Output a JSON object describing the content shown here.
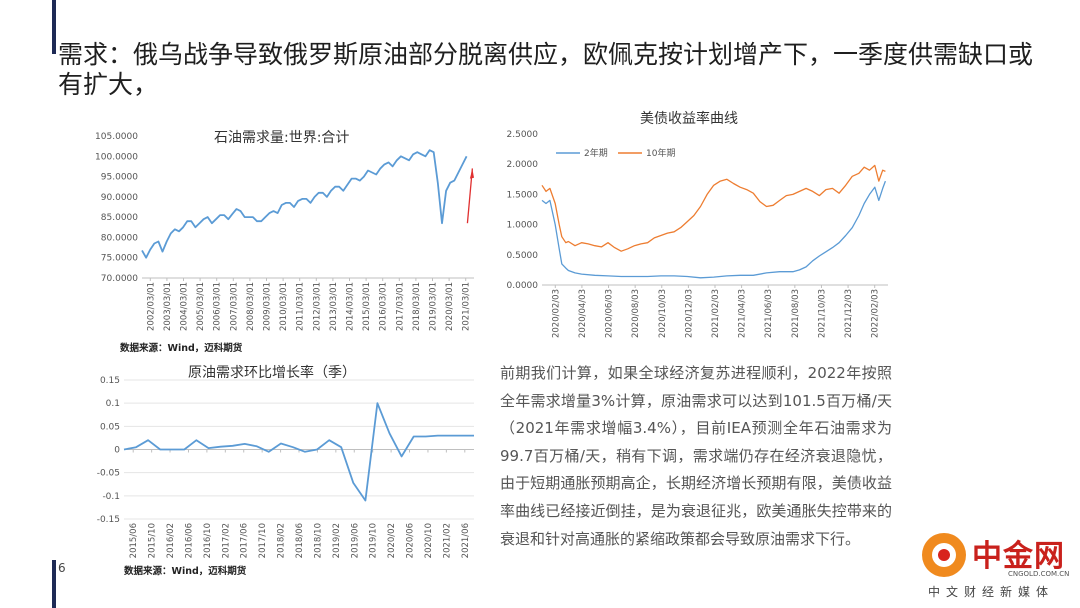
{
  "slide": {
    "title": "需求：俄乌战争导致俄罗斯原油部分脱离供应，欧佩克按计划增产下，一季度供需缺口或有扩大，",
    "page_number": "6",
    "paragraph": "前期我们计算，如果全球经济复苏进程顺利，2022年按照全年需求增量3%计算，原油需求可以达到101.5百万桶/天（2021年需求增幅3.4%），目前IEA预测全年石油需求为99.7百万桶/天，稍有下调，需求端仍存在经济衰退隐忧，由于短期通胀预期高企，长期经济增长预期有限，美债收益率曲线已经接近倒挂，是为衰退征兆，欧美通胀失控带来的衰退和针对高通胀的紧缩政策都会导致原油需求下行。"
  },
  "logo": {
    "text": "中金网",
    "url": "CNGOLD.COM.CN",
    "sub": "中文财经新媒体"
  },
  "colors": {
    "blue": "#5b9bd5",
    "orange": "#ed7d31",
    "arrow": "#e03030",
    "title_bar": "#1e2a55"
  },
  "chart_data": [
    {
      "id": "oil-demand",
      "type": "line",
      "title": "石油需求量:世界:合计",
      "source": "数据来源：Wind，迈科期货",
      "ylim": [
        70,
        105
      ],
      "yticks": [
        "105.0000",
        "100.0000",
        "95.0000",
        "90.0000",
        "85.0000",
        "80.0000",
        "75.0000",
        "70.0000"
      ],
      "xticks": [
        "2002/03/01",
        "2003/03/01",
        "2004/03/01",
        "2005/03/01",
        "2006/03/01",
        "2007/03/01",
        "2008/03/01",
        "2009/03/01",
        "2010/03/01",
        "2011/03/01",
        "2012/03/01",
        "2013/03/01",
        "2014/03/01",
        "2015/03/01",
        "2016/03/01",
        "2017/03/01",
        "2018/03/01",
        "2019/03/01",
        "2020/03/01",
        "2021/03/01"
      ],
      "x_range": [
        2002.0,
        2022.2
      ],
      "annotation": "rising red arrow",
      "series": [
        {
          "color": "#5b9bd5",
          "x": [
            2002.0,
            2002.25,
            2002.5,
            2002.75,
            2003.0,
            2003.25,
            2003.5,
            2003.75,
            2004.0,
            2004.25,
            2004.5,
            2004.75,
            2005.0,
            2005.25,
            2005.5,
            2005.75,
            2006.0,
            2006.25,
            2006.5,
            2006.75,
            2007.0,
            2007.25,
            2007.5,
            2007.75,
            2008.0,
            2008.25,
            2008.5,
            2008.75,
            2009.0,
            2009.25,
            2009.5,
            2009.75,
            2010.0,
            2010.25,
            2010.5,
            2010.75,
            2011.0,
            2011.25,
            2011.5,
            2011.75,
            2012.0,
            2012.25,
            2012.5,
            2012.75,
            2013.0,
            2013.25,
            2013.5,
            2013.75,
            2014.0,
            2014.25,
            2014.5,
            2014.75,
            2015.0,
            2015.25,
            2015.5,
            2015.75,
            2016.0,
            2016.25,
            2016.5,
            2016.75,
            2017.0,
            2017.25,
            2017.5,
            2017.75,
            2018.0,
            2018.25,
            2018.5,
            2018.75,
            2019.0,
            2019.25,
            2019.5,
            2019.75,
            2020.0,
            2020.25,
            2020.5,
            2020.75,
            2021.0,
            2021.25,
            2021.5,
            2021.75
          ],
          "y": [
            76.8,
            75.0,
            77.0,
            78.5,
            79.0,
            76.5,
            79.0,
            81.0,
            82.0,
            81.5,
            82.5,
            84.0,
            84.0,
            82.5,
            83.5,
            84.5,
            85.0,
            83.5,
            84.5,
            85.5,
            85.5,
            84.5,
            85.8,
            87.0,
            86.5,
            85.0,
            85.0,
            85.0,
            84.0,
            84.0,
            85.0,
            86.0,
            86.5,
            86.0,
            88.0,
            88.5,
            88.5,
            87.5,
            89.0,
            89.5,
            89.5,
            88.5,
            90.0,
            91.0,
            91.0,
            90.0,
            91.5,
            92.5,
            92.5,
            91.5,
            93.0,
            94.5,
            94.5,
            94.0,
            95.0,
            96.5,
            96.0,
            95.5,
            97.0,
            98.0,
            98.5,
            97.5,
            99.0,
            100.0,
            99.5,
            99.0,
            100.5,
            101.0,
            100.5,
            100.0,
            101.5,
            101.0,
            93.5,
            83.5,
            91.5,
            93.5,
            94.0,
            96.0,
            98.0,
            100.0
          ]
        }
      ]
    },
    {
      "id": "ust-yield",
      "type": "line",
      "title": "美债收益率曲线",
      "ylim": [
        0,
        2.5
      ],
      "yticks": [
        "2.5000",
        "2.0000",
        "1.5000",
        "1.0000",
        "0.5000",
        "0.0000"
      ],
      "xticks": [
        "2020/02/03",
        "2020/04/03",
        "2020/06/03",
        "2020/08/03",
        "2020/10/03",
        "2020/12/03",
        "2021/02/03",
        "2021/04/03",
        "2021/06/03",
        "2021/08/03",
        "2021/10/03",
        "2021/12/03",
        "2022/02/03"
      ],
      "x_range": [
        0,
        26.2
      ],
      "series": [
        {
          "name": "2年期",
          "color": "#5b9bd5",
          "x": [
            0,
            0.3,
            0.6,
            1.0,
            1.3,
            1.5,
            1.8,
            2.0,
            2.5,
            3,
            4,
            5,
            6,
            7,
            8,
            9,
            10,
            11,
            12,
            13,
            14,
            15,
            16,
            17,
            18,
            19,
            19.5,
            20,
            20.5,
            21,
            21.5,
            22,
            22.5,
            23,
            23.5,
            24,
            24.4,
            24.8,
            25.2,
            25.5,
            25.8,
            26.0
          ],
          "y": [
            1.4,
            1.35,
            1.4,
            1.0,
            0.6,
            0.35,
            0.28,
            0.24,
            0.2,
            0.18,
            0.16,
            0.15,
            0.14,
            0.14,
            0.14,
            0.15,
            0.15,
            0.14,
            0.12,
            0.13,
            0.15,
            0.16,
            0.16,
            0.2,
            0.22,
            0.22,
            0.25,
            0.3,
            0.4,
            0.48,
            0.55,
            0.62,
            0.7,
            0.82,
            0.95,
            1.15,
            1.35,
            1.5,
            1.62,
            1.4,
            1.6,
            1.72
          ]
        },
        {
          "name": "10年期",
          "color": "#ed7d31",
          "x": [
            0,
            0.3,
            0.6,
            1.0,
            1.3,
            1.5,
            1.8,
            2.0,
            2.5,
            3,
            3.5,
            4,
            4.5,
            5,
            5.5,
            6,
            6.5,
            7,
            7.5,
            8,
            8.5,
            9,
            9.5,
            10,
            10.5,
            11,
            11.5,
            12,
            12.5,
            13,
            13.5,
            14,
            14.5,
            15,
            15.5,
            16,
            16.5,
            17,
            17.5,
            18,
            18.5,
            19,
            19.5,
            20,
            20.5,
            21,
            21.5,
            22,
            22.5,
            23,
            23.5,
            24,
            24.4,
            24.8,
            25.2,
            25.5,
            25.8,
            26.0
          ],
          "y": [
            1.65,
            1.55,
            1.6,
            1.35,
            1.0,
            0.8,
            0.7,
            0.72,
            0.65,
            0.7,
            0.68,
            0.65,
            0.63,
            0.7,
            0.62,
            0.56,
            0.6,
            0.65,
            0.68,
            0.7,
            0.78,
            0.82,
            0.86,
            0.88,
            0.95,
            1.05,
            1.15,
            1.3,
            1.5,
            1.65,
            1.72,
            1.75,
            1.68,
            1.62,
            1.58,
            1.52,
            1.38,
            1.3,
            1.32,
            1.4,
            1.48,
            1.5,
            1.55,
            1.6,
            1.55,
            1.48,
            1.58,
            1.6,
            1.52,
            1.65,
            1.8,
            1.85,
            1.95,
            1.9,
            1.98,
            1.72,
            1.9,
            1.88
          ]
        }
      ],
      "legend": [
        "2年期",
        "10年期"
      ]
    },
    {
      "id": "qoq-growth",
      "type": "line",
      "title": "原油需求环比增长率（季）",
      "source": "数据来源：Wind，迈科期货",
      "ylim": [
        -0.15,
        0.15
      ],
      "yticks": [
        "0.15",
        "0.1",
        "0.05",
        "0",
        "-0.05",
        "-0.1",
        "-0.15"
      ],
      "xticks": [
        "2015/06",
        "2015/10",
        "2016/02",
        "2016/06",
        "2016/10",
        "2017/02",
        "2017/06",
        "2017/10",
        "2018/02",
        "2018/06",
        "2018/10",
        "2019/02",
        "2019/06",
        "2019/10",
        "2020/02",
        "2020/06",
        "2020/10",
        "2021/02",
        "2021/06"
      ],
      "series": [
        {
          "color": "#5b9bd5",
          "x": [
            0,
            1,
            2,
            3,
            4,
            5,
            6,
            7,
            8,
            9,
            10,
            11,
            12,
            13,
            14,
            15,
            16,
            17,
            18,
            19,
            20,
            21,
            22,
            23,
            24,
            25,
            26,
            27,
            28,
            29
          ],
          "y": [
            0.0,
            0.005,
            0.02,
            0.0,
            0.0,
            0.0,
            0.02,
            0.003,
            0.006,
            0.008,
            0.012,
            0.007,
            -0.005,
            0.013,
            0.005,
            -0.005,
            0.0,
            0.02,
            0.005,
            -0.072,
            -0.11,
            0.1,
            0.035,
            -0.015,
            0.028,
            0.028,
            0.03,
            0.03,
            0.03,
            0.03
          ]
        }
      ]
    }
  ]
}
